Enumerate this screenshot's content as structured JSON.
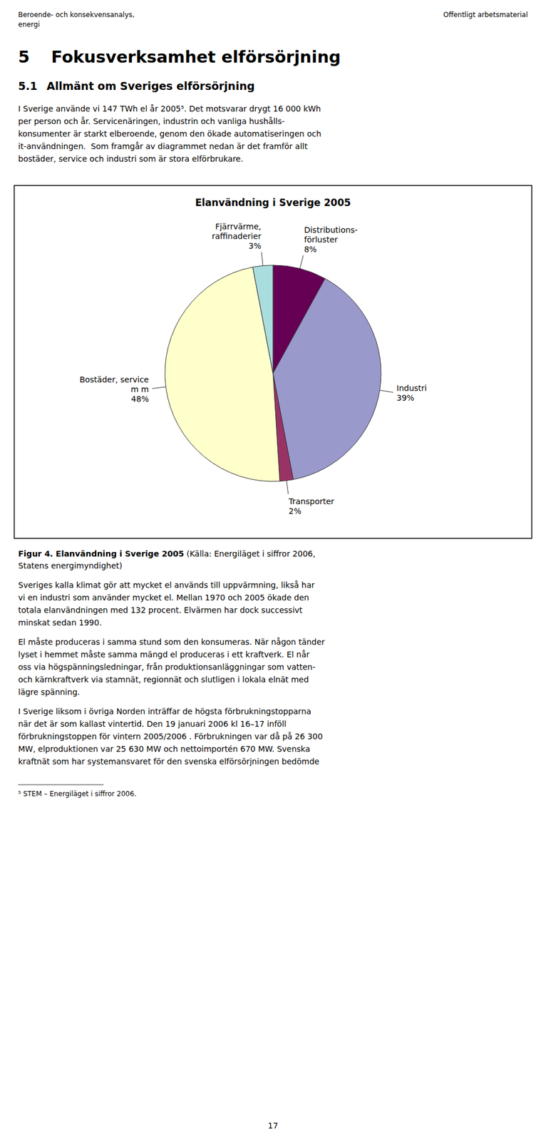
{
  "header": {
    "left": [
      "Beroende- och konsekvensanalys,",
      "energi"
    ],
    "right": "Offentligt arbetsmaterial"
  },
  "chapter": {
    "number": "5",
    "title": "Fokusverksamhet elförsörjning"
  },
  "section": {
    "number": "5.1",
    "title": "Allmänt om Sveriges elförsörjning"
  },
  "paragraphs_before": [
    [
      "I Sverige använde vi 147 TWh el år 2005⁵. Det motsvarar drygt 16 000 kWh",
      "per person och år. Servicenäringen, industrin och vanliga hushålls-",
      "konsumenter är starkt elberoende, genom den ökade automatiseringen och",
      "it-användningen.  Som framgår av diagrammet nedan är det framför allt",
      "bostäder, service och industri som är stora elförbrukare."
    ]
  ],
  "chart_data": {
    "type": "pie",
    "title": "Elanvändning i Sverige 2005",
    "categories": [
      "Distributions-\nförluster",
      "Industri",
      "Transporter",
      "Bostäder, service\nm m",
      "Fjärrvärme,\nraffinaderier"
    ],
    "values": [
      8,
      39,
      2,
      48,
      3
    ],
    "value_labels": [
      "8%",
      "39%",
      "2%",
      "48%",
      "3%"
    ],
    "colors": [
      "#660055",
      "#9999cc",
      "#993366",
      "#ffffcc",
      "#aadddd"
    ],
    "data_labels": true
  },
  "caption": {
    "bold": "Figur 4. Elanvändning i Sverige 2005",
    "normal": " (Källa: Energiläget i siffror 2006,",
    "line2": "Statens energimyndighet)"
  },
  "paragraphs_after": [
    [
      "Sveriges kalla klimat gör att mycket el används till uppvärmning, likså har",
      "vi en industri som använder mycket el. Mellan 1970 och 2005 ökade den",
      "totala elanvändningen med 132 procent. Elvärmen har dock successivt",
      "minskat sedan 1990."
    ],
    [
      "El måste produceras i samma stund som den konsumeras. När någon tänder",
      "lyset i hemmet måste samma mängd el produceras i ett kraftverk. El når",
      "oss via högspänningsledningar, från produktionsanläggningar som vatten-",
      "och kärnkraftverk via stamnät, regionnät och slutligen i lokala elnät med",
      "lägre spänning."
    ],
    [
      "I Sverige liksom i övriga Norden inträffar de högsta förbrukningstopparna",
      "när det är som kallast vintertid. Den 19 januari 2006 kl 16–17 inföll",
      "förbrukningstoppen för vintern 2005/2006 . Förbrukningen var då på 26 300",
      "MW, elproduktionen var 25 630 MW och nettoimportén 670 MW. Svenska",
      "kraftnät som har systemansvaret för den svenska elförsörjningen bedömde"
    ]
  ],
  "footnote": "⁵ STEM – Energiläget i siffror 2006.",
  "page_number": "17"
}
